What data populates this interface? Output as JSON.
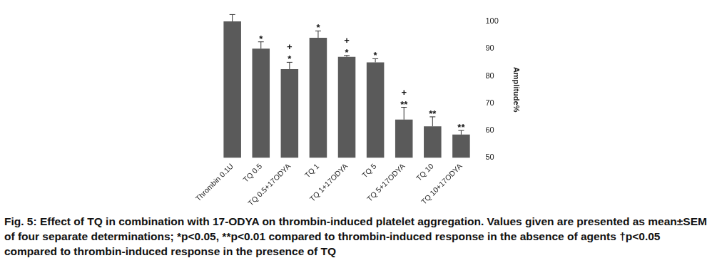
{
  "chart_data": {
    "type": "bar",
    "caption": "Fig. 5: Effect of TQ in combination with 17-ODYA on thrombin-induced platelet aggregation. Values given are presented as mean±SEM of four separate determinations; *p<0.05, **p<0.01 compared to thrombin-induced response in the absence of agents †p<0.05 compared to thrombin-induced response in the presence of TQ",
    "y_label": "Amplitude%",
    "categories": [
      "Thrombin 0.1U",
      "TQ 0.5",
      "TQ 0.5+17ODYA",
      "TQ 1",
      "TQ 1+17ODYA",
      "TQ 5",
      "TQ 5+17ODYA",
      "TQ 10",
      "TQ 10+17ODYA"
    ],
    "values": [
      100,
      90,
      82.5,
      94,
      87,
      85,
      64,
      61.5,
      58.5
    ],
    "errors": [
      2.5,
      2.5,
      2.5,
      2.5,
      0.5,
      1.3,
      4.5,
      3.5,
      1.5
    ],
    "significance": [
      null,
      [
        "*"
      ],
      [
        "+",
        "*"
      ],
      [
        "*"
      ],
      [
        "+",
        "*"
      ],
      [
        "*"
      ],
      [
        "+",
        "**"
      ],
      [
        "**"
      ],
      [
        "**"
      ]
    ],
    "color": "#5a5a5a",
    "ylim": [
      50,
      100
    ],
    "yticks": [
      50,
      60,
      70,
      80,
      90,
      100
    ],
    "grid": false
  }
}
